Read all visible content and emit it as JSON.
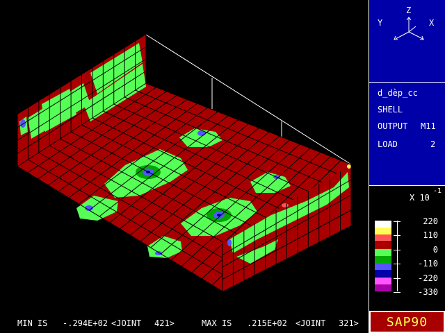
{
  "axes": {
    "x": "X",
    "y": "Y",
    "z": "Z"
  },
  "info": {
    "model_name": "d_dèp_cc",
    "element_type": "SHELL",
    "output_label": "OUTPUT",
    "output_value": "M11",
    "load_label": "LOAD",
    "load_value": "2"
  },
  "legend": {
    "scale": "X 10",
    "scale_exp": "-1",
    "ticks": [
      "220",
      "110",
      "0",
      "-110",
      "-220",
      "-330"
    ],
    "colors": [
      "#ffffff",
      "#ffff55",
      "#ff5555",
      "#a80000",
      "#55ff55",
      "#00a800",
      "#5555ff",
      "#0000a8",
      "#ff55ff",
      "#a800a8"
    ]
  },
  "status": {
    "min_label": "MIN IS",
    "min_value": "-.294E+02",
    "min_joint_label": "<JOINT",
    "min_joint": "421>",
    "max_label": "MAX IS",
    "max_value": ".215E+02",
    "max_joint_label": "<JOINT",
    "max_joint": "321>"
  },
  "brand": "SAP90"
}
